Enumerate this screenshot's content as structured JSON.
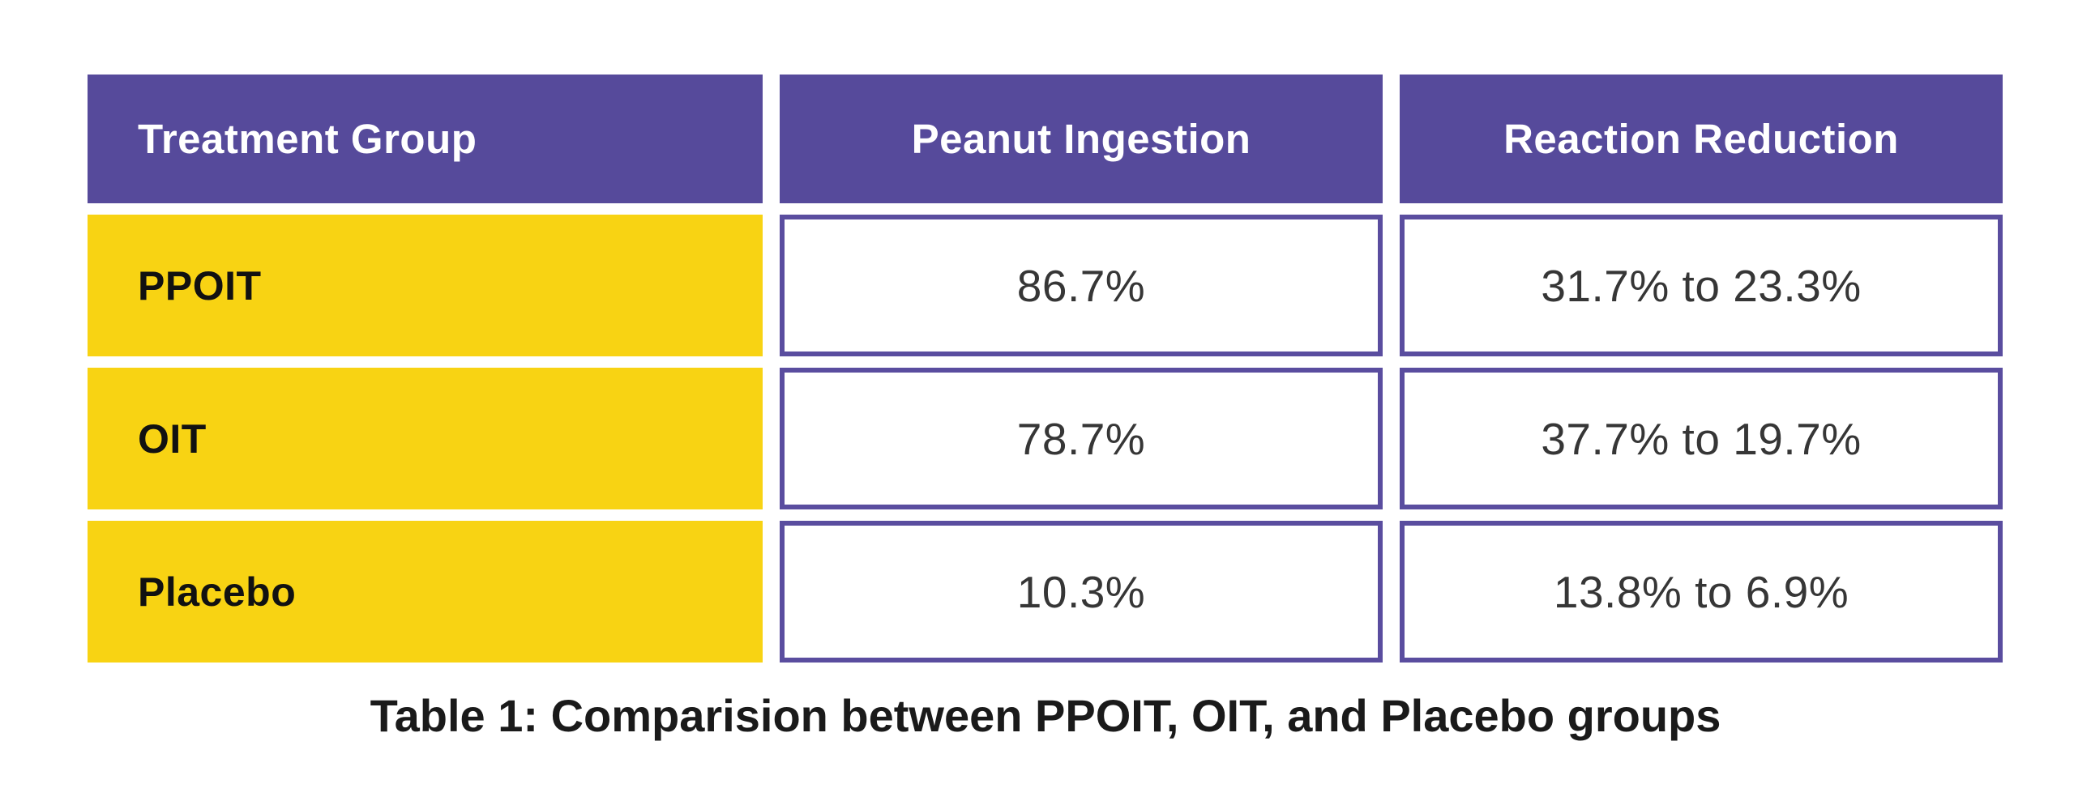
{
  "caption": "Table 1: Comparision between PPOIT, OIT, and Placebo groups",
  "colors": {
    "header_purple": "#564A9B",
    "cell_border_purple": "#5A4D9F",
    "row_label_yellow": "#F8D313",
    "header_text": "#FFFFFF",
    "label_text": "#111111",
    "value_text": "#363636",
    "caption_text": "#1A1A1A",
    "background": "#FFFFFF"
  },
  "table": {
    "header": [
      "Treatment Group",
      "Peanut Ingestion",
      "Reaction Reduction"
    ],
    "rows": [
      [
        "PPOIT",
        "86.7%",
        "31.7% to 23.3%"
      ],
      [
        "OIT",
        "78.7%",
        "37.7% to 19.7%"
      ],
      [
        "Placebo",
        "10.3%",
        "13.8% to 6.9%"
      ]
    ]
  },
  "chart_data": {
    "type": "table",
    "title": "Table 1: Comparision between PPOIT, OIT, and Placebo groups",
    "columns": [
      "Treatment Group",
      "Peanut Ingestion",
      "Reaction Reduction"
    ],
    "rows": [
      [
        "PPOIT",
        "86.7%",
        "31.7% to 23.3%"
      ],
      [
        "OIT",
        "78.7%",
        "37.7% to 19.7%"
      ],
      [
        "Placebo",
        "10.3%",
        "13.8% to 6.9%"
      ]
    ],
    "peanut_ingestion_values_pct": [
      86.7,
      78.7,
      10.3
    ],
    "reaction_reduction_from_pct": [
      31.7,
      37.7,
      13.8
    ],
    "reaction_reduction_to_pct": [
      23.3,
      19.7,
      6.9
    ],
    "legend_position": "none",
    "grid": false
  }
}
